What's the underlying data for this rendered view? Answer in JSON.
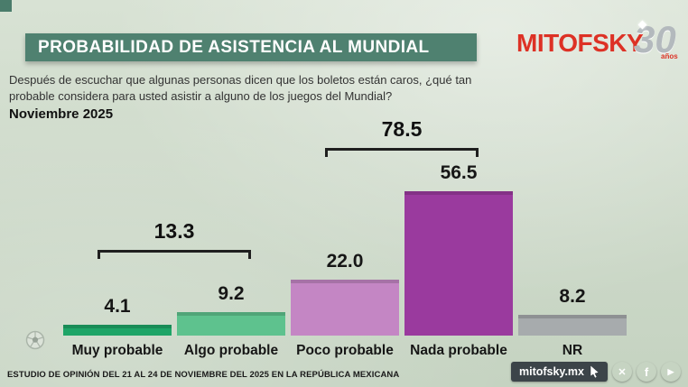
{
  "header": {
    "title": "PROBABILIDAD DE ASISTENCIA AL MUNDIAL",
    "brand": "MITOFSKY",
    "brand_badge": "30",
    "brand_badge_sub": "años"
  },
  "intro": {
    "question": "Después de escuchar que algunas personas dicen que los boletos están caros, ¿qué tan probable considera para usted asistir a alguno de los juegos del Mundial?",
    "date_label": "Noviembre 2025"
  },
  "chart_data": {
    "type": "bar",
    "title": "PROBABILIDAD DE ASISTENCIA AL MUNDIAL",
    "subtitle": "Noviembre 2025",
    "categories": [
      "Muy probable",
      "Algo probable",
      "Poco probable",
      "Nada probable",
      "NR"
    ],
    "values": [
      4.1,
      9.2,
      22.0,
      56.5,
      8.2
    ],
    "value_labels": [
      "4.1",
      "9.2",
      "22.0",
      "56.5",
      "8.2"
    ],
    "colors": [
      "#1ea567",
      "#5ec28e",
      "#c486c4",
      "#9a3a9e",
      "#a7abad"
    ],
    "groups": [
      {
        "label": "13.3",
        "value": 13.3,
        "from": 0,
        "to": 1
      },
      {
        "label": "78.5",
        "value": 78.5,
        "from": 2,
        "to": 3
      }
    ],
    "ylim": [
      0,
      60
    ],
    "grid": false,
    "legend": "none"
  },
  "footer": {
    "note": "ESTUDIO DE OPINIÓN DEL 21 AL 24 DE NOVIEMBRE DEL 2025 EN LA REPÚBLICA MEXICANA",
    "website": "mitofsky.mx"
  },
  "social": [
    {
      "name": "x",
      "glyph": "✕"
    },
    {
      "name": "facebook",
      "glyph": "f"
    },
    {
      "name": "youtube",
      "glyph": "▶"
    }
  ]
}
